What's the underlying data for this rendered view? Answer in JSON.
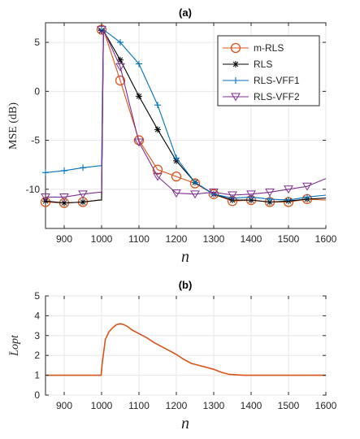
{
  "chart_data": [
    {
      "id": "a",
      "type": "line",
      "title": "(a)",
      "ylabel": "MSE (dB)",
      "xlabel": "n",
      "xlim": [
        850,
        1600
      ],
      "ylim": [
        -14,
        7
      ],
      "xticks": [
        900,
        1000,
        1100,
        1200,
        1300,
        1400,
        1500,
        1600
      ],
      "yticks": [
        -10,
        -5,
        0,
        5
      ],
      "grid": true,
      "legend_position": "top-right",
      "series": [
        {
          "name": "m-RLS",
          "color": "#d95319",
          "marker": "circle",
          "x": [
            850,
            900,
            950,
            995,
            1000,
            1005,
            1050,
            1100,
            1150,
            1200,
            1250,
            1300,
            1350,
            1400,
            1450,
            1500,
            1550,
            1600
          ],
          "y": [
            -11.3,
            -11.4,
            -11.3,
            -11.1,
            -11.1,
            6.3,
            1.1,
            -5.0,
            -8.0,
            -8.7,
            -9.4,
            -10.5,
            -11.2,
            -11.1,
            -11.3,
            -11.3,
            -11.0,
            -11.1
          ],
          "marker_x": [
            850,
            900,
            950,
            1000,
            1050,
            1100,
            1150,
            1200,
            1250,
            1300,
            1350,
            1400,
            1450,
            1500,
            1550
          ],
          "marker_y": [
            -11.3,
            -11.4,
            -11.3,
            6.3,
            1.1,
            -5.0,
            -8.0,
            -8.7,
            -9.4,
            -10.5,
            -11.2,
            -11.1,
            -11.3,
            -11.3,
            -11.0
          ]
        },
        {
          "name": "RLS",
          "color": "#000000",
          "marker": "asterisk",
          "x": [
            850,
            900,
            950,
            995,
            1000,
            1005,
            1050,
            1100,
            1150,
            1200,
            1250,
            1300,
            1350,
            1400,
            1450,
            1500,
            1550,
            1600
          ],
          "y": [
            -11.2,
            -11.4,
            -11.3,
            -11.1,
            -11.1,
            6.2,
            3.2,
            -0.5,
            -3.9,
            -7.1,
            -9.3,
            -10.5,
            -11.1,
            -11.1,
            -11.3,
            -11.2,
            -11.0,
            -10.9
          ],
          "marker_x": [
            850,
            900,
            950,
            1000,
            1050,
            1100,
            1150,
            1200,
            1250,
            1300,
            1350,
            1400,
            1450,
            1500,
            1550
          ],
          "marker_y": [
            -11.2,
            -11.4,
            -11.3,
            6.2,
            3.2,
            -0.5,
            -3.9,
            -7.1,
            -9.3,
            -10.5,
            -11.1,
            -11.1,
            -11.3,
            -11.2,
            -11.0
          ]
        },
        {
          "name": "RLS-VFF1",
          "color": "#0072bd",
          "marker": "plus",
          "x": [
            850,
            900,
            950,
            995,
            1000,
            1005,
            1050,
            1100,
            1150,
            1200,
            1250,
            1300,
            1350,
            1400,
            1450,
            1500,
            1550,
            1600
          ],
          "y": [
            -8.3,
            -8.1,
            -7.8,
            -7.6,
            -7.6,
            6.3,
            5.0,
            2.8,
            -1.4,
            -6.8,
            -9.3,
            -10.5,
            -10.9,
            -10.8,
            -11.0,
            -11.1,
            -10.8,
            -10.6
          ],
          "marker_x": [
            850,
            900,
            950,
            1000,
            1050,
            1100,
            1150,
            1200,
            1250,
            1300,
            1350,
            1400,
            1450,
            1500,
            1550
          ],
          "marker_y": [
            -8.3,
            -8.1,
            -7.8,
            6.3,
            5.0,
            2.8,
            -1.4,
            -6.8,
            -9.3,
            -10.5,
            -10.9,
            -10.8,
            -11.0,
            -11.1,
            -10.8
          ]
        },
        {
          "name": "RLS-VFF2",
          "color": "#7e2f8e",
          "marker": "triangle-down",
          "x": [
            850,
            900,
            950,
            995,
            1000,
            1005,
            1050,
            1100,
            1150,
            1200,
            1250,
            1300,
            1350,
            1400,
            1450,
            1500,
            1550,
            1600
          ],
          "y": [
            -10.8,
            -10.8,
            -10.5,
            -10.3,
            -10.3,
            6.3,
            2.5,
            -5.2,
            -8.7,
            -10.4,
            -10.5,
            -10.3,
            -10.6,
            -10.5,
            -10.3,
            -10.0,
            -9.7,
            -8.9
          ],
          "marker_x": [
            850,
            900,
            950,
            1000,
            1050,
            1100,
            1150,
            1200,
            1250,
            1300,
            1350,
            1400,
            1450,
            1500,
            1550
          ],
          "marker_y": [
            -10.8,
            -10.8,
            -10.5,
            6.3,
            2.5,
            -5.2,
            -8.7,
            -10.4,
            -10.5,
            -10.3,
            -10.6,
            -10.5,
            -10.3,
            -10.0,
            -9.7
          ]
        }
      ]
    },
    {
      "id": "b",
      "type": "line",
      "title": "(b)",
      "ylabel": "L̄opt",
      "xlabel": "n",
      "xlim": [
        850,
        1600
      ],
      "ylim": [
        0,
        5
      ],
      "xticks": [
        900,
        1000,
        1100,
        1200,
        1300,
        1400,
        1500,
        1600
      ],
      "yticks": [
        0,
        1,
        2,
        3,
        4,
        5
      ],
      "grid": true,
      "series": [
        {
          "color": "#d95319",
          "x": [
            850,
            999,
            1001,
            1010,
            1020,
            1030,
            1040,
            1050,
            1060,
            1070,
            1080,
            1100,
            1120,
            1140,
            1160,
            1180,
            1200,
            1220,
            1240,
            1260,
            1280,
            1300,
            1320,
            1340,
            1360,
            1380,
            1400,
            1600
          ],
          "y": [
            1.0,
            1.0,
            1.5,
            2.8,
            3.2,
            3.4,
            3.55,
            3.6,
            3.55,
            3.45,
            3.3,
            3.1,
            2.9,
            2.65,
            2.45,
            2.25,
            2.05,
            1.8,
            1.6,
            1.5,
            1.4,
            1.3,
            1.15,
            1.05,
            1.02,
            1.0,
            1.0,
            1.0
          ]
        }
      ]
    }
  ]
}
